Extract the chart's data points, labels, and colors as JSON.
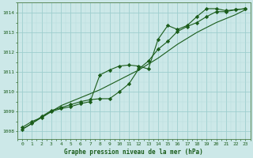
{
  "title": "Graphe pression niveau de la mer (hPa)",
  "hours": [
    0,
    1,
    2,
    3,
    4,
    5,
    6,
    7,
    8,
    9,
    10,
    11,
    12,
    13,
    14,
    15,
    16,
    17,
    18,
    19,
    20,
    21,
    22,
    23
  ],
  "ylim": [
    1007.6,
    1014.5
  ],
  "yticks": [
    1008,
    1009,
    1010,
    1011,
    1012,
    1013,
    1014
  ],
  "bg_color": "#cce8e8",
  "grid_major_color": "#9ecece",
  "grid_minor_color": "#b8dede",
  "line_color": "#1a5c1a",
  "smooth_line": [
    1008.1,
    1008.4,
    1008.7,
    1009.0,
    1009.3,
    1009.5,
    1009.7,
    1009.9,
    1010.1,
    1010.35,
    1010.6,
    1010.85,
    1011.1,
    1011.4,
    1011.7,
    1012.05,
    1012.4,
    1012.7,
    1013.0,
    1013.25,
    1013.5,
    1013.7,
    1013.9,
    1014.15
  ],
  "line_a": [
    1008.2,
    1008.5,
    1008.7,
    1009.0,
    1009.15,
    1009.25,
    1009.4,
    1009.5,
    1010.85,
    1011.1,
    1011.3,
    1011.35,
    1011.3,
    1011.15,
    1012.65,
    1013.35,
    1013.15,
    1013.35,
    1013.8,
    1014.2,
    1014.2,
    1014.1,
    1014.15,
    1014.2
  ],
  "line_b": [
    1008.1,
    1008.4,
    1008.75,
    1009.05,
    1009.2,
    1009.35,
    1009.5,
    1009.6,
    1009.65,
    1009.65,
    1010.0,
    1010.4,
    1011.15,
    1011.55,
    1012.15,
    1012.55,
    1013.05,
    1013.3,
    1013.5,
    1013.8,
    1014.05,
    1014.05,
    1014.15,
    1014.2
  ]
}
